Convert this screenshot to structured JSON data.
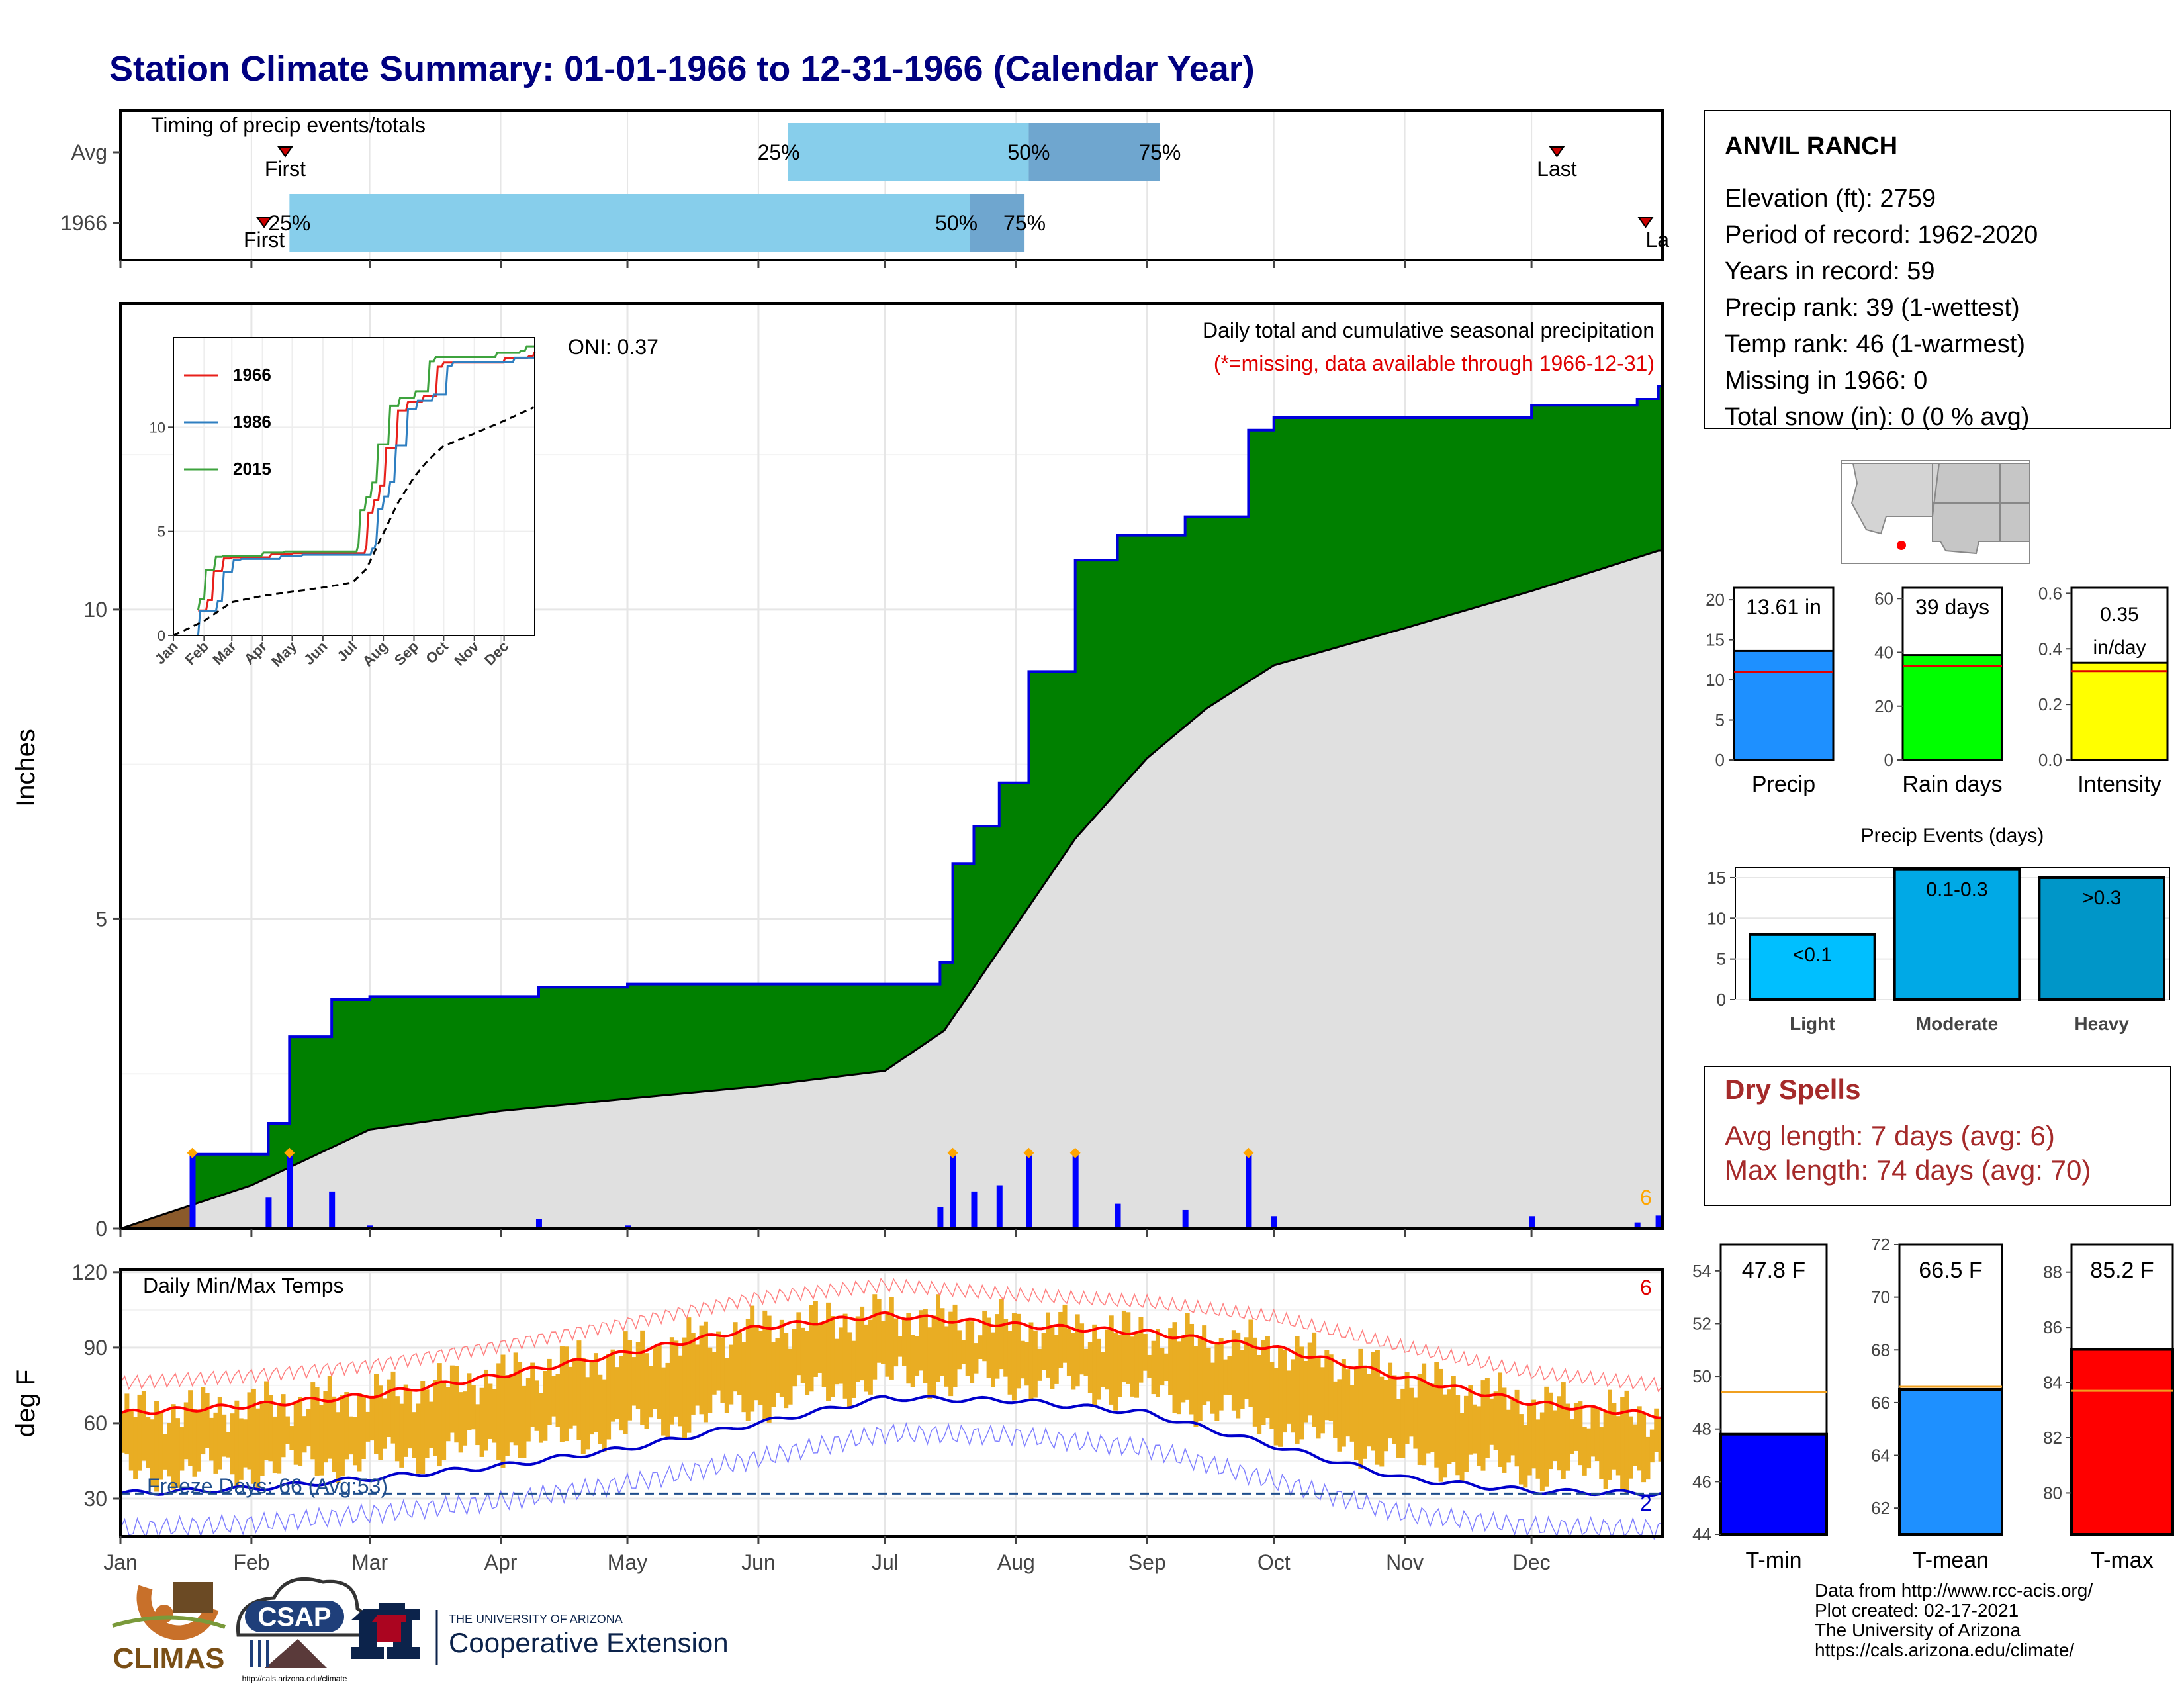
{
  "title": "Station Climate Summary: 01-01-1966 to 12-31-1966 (Calendar Year)",
  "timing": {
    "title": "Timing of precip events/totals",
    "rows": [
      {
        "label": "Avg",
        "first_doy": 39,
        "last_doy": 340,
        "q25_doy": 158,
        "q50_doy": 215,
        "q75_doy": 246,
        "first_label": "First",
        "last_label": "Last"
      },
      {
        "label": "1966",
        "first_doy": 34,
        "last_doy": 361,
        "q25_doy": 40,
        "q50_doy": 201,
        "q75_doy": 214,
        "first_label": "First",
        "last_label": "La"
      }
    ],
    "q_labels": [
      "25%",
      "50%",
      "75%"
    ]
  },
  "months": [
    "Jan",
    "Feb",
    "Mar",
    "Apr",
    "May",
    "Jun",
    "Jul",
    "Aug",
    "Sep",
    "Oct",
    "Nov",
    "Dec"
  ],
  "precip_panel": {
    "ylabel": "Inches",
    "yticks": [
      "0",
      "5",
      "10"
    ],
    "title": "Daily total and cumulative seasonal precipitation",
    "subtitle": "(*=missing, data available through 1966-12-31)",
    "oni": "ONI: 0.37",
    "corner_count": "6",
    "colors": {
      "above": "#008000",
      "avg": "#e0e0e0",
      "line": "#0000dd",
      "bars": "#0000ff",
      "markers": "#ffa500",
      "below": "#8b5a2b"
    }
  },
  "inset": {
    "legend": [
      "1966",
      "1986",
      "2015"
    ],
    "colors": [
      "#e8201b",
      "#2f7fc1",
      "#3ea33e"
    ],
    "yticks": [
      "0",
      "5",
      "10"
    ],
    "xticks": [
      "Jan",
      "Feb",
      "Mar",
      "Apr",
      "May",
      "Jun",
      "Jul",
      "Aug",
      "Sep",
      "Oct",
      "Nov",
      "Dec"
    ]
  },
  "temp_panel": {
    "ylabel": "deg F",
    "title": "Daily Min/Max Temps",
    "yticks": [
      "30",
      "60",
      "90",
      "120"
    ],
    "freeze": "Freeze Days: 66 (Avg:53)",
    "count_red": "6",
    "count_blue": "2"
  },
  "station": {
    "name": "ANVIL RANCH",
    "lines": [
      "Elevation (ft): 2759",
      "Period of record: 1962-2020",
      "Years in record: 59",
      "Precip rank: 39 (1-wettest)",
      "Temp rank: 46 (1-warmest)",
      "Missing in 1966: 0",
      "Total snow (in): 0 (0 % avg)"
    ]
  },
  "mini_bars": [
    {
      "label": "Precip",
      "value_text": "13.61 in",
      "value": 13.61,
      "avg": 11.0,
      "ymax": 21.5,
      "yticks": [
        "0",
        "5",
        "10",
        "15",
        "20"
      ],
      "color": "#1e90ff"
    },
    {
      "label": "Rain days",
      "value_text": "39 days",
      "value": 39,
      "avg": 35,
      "ymax": 64,
      "yticks": [
        "0",
        "20",
        "40",
        "60"
      ],
      "color": "#00ff00"
    },
    {
      "label": "Intensity",
      "value_text": "0.35 in/day",
      "value": 0.35,
      "avg": 0.32,
      "ymax": 0.62,
      "yticks": [
        "0.0",
        "0.2",
        "0.4",
        "0.6"
      ],
      "color": "#ffff00"
    }
  ],
  "events": {
    "title": "Precip Events (days)",
    "yticks": [
      "0",
      "5",
      "10",
      "15"
    ],
    "categories": [
      "Light",
      "Moderate",
      "Heavy"
    ],
    "values": [
      8,
      16,
      15
    ],
    "labels": [
      "<0.1",
      "0.1-0.3",
      ">0.3"
    ],
    "colors": [
      "#00bfff",
      "#00a9e6",
      "#0096c8"
    ]
  },
  "dry_spells": {
    "title": "Dry Spells",
    "lines": [
      "Avg length: 7 days (avg: 6)",
      "Max length: 74 days (avg: 70)"
    ]
  },
  "temp_bars": [
    {
      "label": "T-min",
      "value_text": "47.8 F",
      "value": 47.8,
      "avg": 49.4,
      "ymin": 44,
      "ymax": 55,
      "yticks": [
        "44",
        "46",
        "48",
        "50",
        "52",
        "54"
      ],
      "color": "#0000ff"
    },
    {
      "label": "T-mean",
      "value_text": "66.5 F",
      "value": 66.5,
      "avg": 66.6,
      "ymin": 61,
      "ymax": 72,
      "yticks": [
        "62",
        "64",
        "66",
        "68",
        "70",
        "72"
      ],
      "color": "#1e90ff"
    },
    {
      "label": "T-max",
      "value_text": "85.2 F",
      "value": 85.2,
      "avg": 83.7,
      "ymin": 78.5,
      "ymax": 89,
      "yticks": [
        "80",
        "82",
        "84",
        "86",
        "88"
      ],
      "color": "#ff0000"
    }
  ],
  "credits": [
    "Data from http://www.rcc-acis.org/",
    "Plot created: 02-17-2021",
    "The University of Arizona",
    "https://cals.arizona.edu/climate/"
  ],
  "logos": {
    "climas": "CLIMAS",
    "csap": "CSAP",
    "csap_url": "http://cals.arizona.edu/climate",
    "ua_line1": "THE UNIVERSITY OF ARIZONA",
    "ua_line2": "Cooperative Extension"
  },
  "chart_data": [
    {
      "type": "area",
      "title": "Daily total and cumulative seasonal precipitation",
      "ylabel": "Inches",
      "ylim": [
        0,
        15
      ],
      "observed_cumulative": {
        "x": [
          "Jan 1",
          "Jan 15",
          "Jan 18",
          "Feb 5",
          "Feb 10",
          "Feb 20",
          "Mar 1",
          "Apr 10",
          "May 1",
          "Jun 30",
          "Jul 14",
          "Jul 17",
          "Jul 22",
          "Jul 28",
          "Aug 4",
          "Aug 15",
          "Aug 25",
          "Sep 10",
          "Sep 25",
          "Oct 1",
          "Nov 1",
          "Dec 1",
          "Dec 26",
          "Dec 31"
        ],
        "y": [
          0,
          0,
          1.2,
          1.7,
          3.1,
          3.7,
          3.75,
          3.9,
          3.95,
          3.95,
          4.3,
          5.9,
          6.5,
          7.2,
          9.0,
          10.8,
          11.2,
          11.5,
          12.9,
          13.1,
          13.1,
          13.3,
          13.4,
          13.61
        ]
      },
      "average_cumulative": {
        "x": [
          "Jan 1",
          "Feb 1",
          "Mar 1",
          "Apr 1",
          "May 1",
          "Jun 1",
          "Jul 1",
          "Jul 15",
          "Aug 1",
          "Aug 15",
          "Sep 1",
          "Sep 15",
          "Oct 1",
          "Nov 1",
          "Dec 1",
          "Dec 31"
        ],
        "y": [
          0,
          0.7,
          1.6,
          1.9,
          2.1,
          2.3,
          2.55,
          3.2,
          4.9,
          6.3,
          7.6,
          8.4,
          9.1,
          9.7,
          10.3,
          10.95
        ]
      }
    },
    {
      "type": "line",
      "title": "Daily Min/Max Temps",
      "ylabel": "deg F",
      "ylim": [
        15,
        120
      ],
      "series": [
        {
          "name": "avg max",
          "x": [
            "Jan 1",
            "Feb 1",
            "Mar 1",
            "Apr 1",
            "May 1",
            "Jun 1",
            "Jul 1",
            "Aug 1",
            "Sep 1",
            "Oct 1",
            "Nov 1",
            "Dec 1",
            "Dec 31"
          ],
          "y": [
            64,
            67,
            71,
            79,
            88,
            98,
            103,
            99,
            96,
            90,
            78,
            68,
            63
          ]
        },
        {
          "name": "avg min",
          "x": [
            "Jan 1",
            "Feb 1",
            "Mar 1",
            "Apr 1",
            "May 1",
            "Jun 1",
            "Jul 1",
            "Aug 1",
            "Sep 1",
            "Oct 1",
            "Nov 1",
            "Dec 1",
            "Dec 31"
          ],
          "y": [
            32,
            34,
            38,
            43,
            50,
            60,
            70,
            69,
            64,
            51,
            38,
            33,
            32
          ]
        }
      ],
      "freeze_line": 32
    }
  ]
}
